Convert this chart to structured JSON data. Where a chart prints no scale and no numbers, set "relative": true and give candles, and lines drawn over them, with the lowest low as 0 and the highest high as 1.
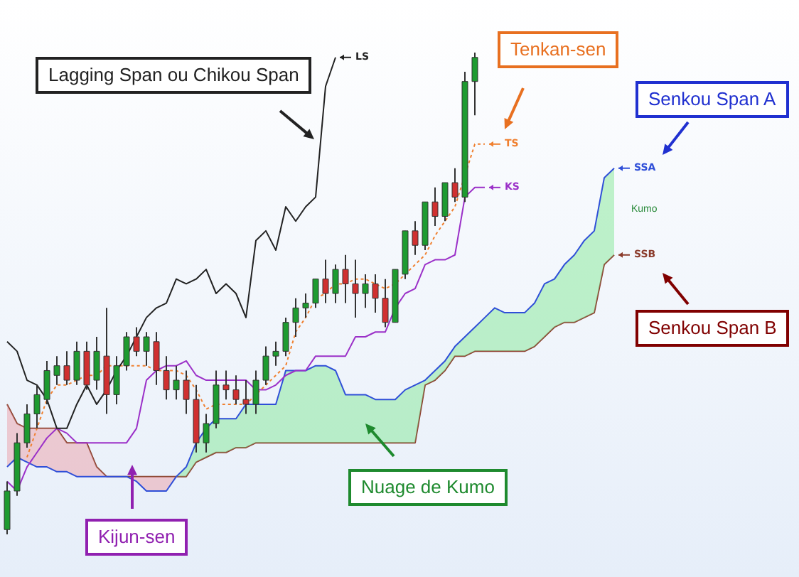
{
  "chart_data": {
    "type": "candlestick",
    "relative": true,
    "tick_labels": false,
    "legend": "right",
    "categories": [
      null,
      null,
      null,
      null,
      null,
      null,
      null,
      null,
      null,
      null,
      null,
      null,
      null,
      null,
      null,
      null,
      null,
      null,
      null,
      null,
      null,
      null,
      null,
      null,
      null,
      null,
      null,
      null,
      null,
      null,
      null,
      null,
      null,
      null,
      null,
      null,
      null,
      null,
      null,
      null,
      null,
      null,
      null,
      null,
      null,
      null,
      null,
      null,
      null,
      null,
      null,
      null,
      null,
      null,
      null,
      null,
      null,
      null,
      null,
      null,
      null,
      null
    ],
    "ohlc": [
      [
        0.01,
        0.11,
        0,
        0.09
      ],
      [
        0.09,
        0.21,
        0.08,
        0.19
      ],
      [
        0.19,
        0.27,
        0.18,
        0.25
      ],
      [
        0.25,
        0.31,
        0.22,
        0.29
      ],
      [
        0.28,
        0.36,
        0.27,
        0.34
      ],
      [
        0.33,
        0.37,
        0.31,
        0.35
      ],
      [
        0.35,
        0.38,
        0.31,
        0.32
      ],
      [
        0.32,
        0.4,
        0.31,
        0.38
      ],
      [
        0.38,
        0.4,
        0.3,
        0.31
      ],
      [
        0.32,
        0.41,
        0.3,
        0.38
      ],
      [
        0.37,
        0.47,
        0.25,
        0.29
      ],
      [
        0.29,
        0.37,
        0.27,
        0.35
      ],
      [
        0.35,
        0.42,
        0.34,
        0.41
      ],
      [
        0.41,
        0.43,
        0.37,
        0.38
      ],
      [
        0.38,
        0.42,
        0.35,
        0.41
      ],
      [
        0.4,
        0.42,
        0.31,
        0.34
      ],
      [
        0.34,
        0.37,
        0.28,
        0.3
      ],
      [
        0.3,
        0.35,
        0.28,
        0.32
      ],
      [
        0.32,
        0.34,
        0.25,
        0.28
      ],
      [
        0.28,
        0.31,
        0.17,
        0.19
      ],
      [
        0.19,
        0.25,
        0.17,
        0.23
      ],
      [
        0.23,
        0.34,
        0.22,
        0.31
      ],
      [
        0.31,
        0.34,
        0.28,
        0.3
      ],
      [
        0.3,
        0.33,
        0.27,
        0.28
      ],
      [
        0.28,
        0.32,
        0.25,
        0.27
      ],
      [
        0.27,
        0.34,
        0.25,
        0.32
      ],
      [
        0.32,
        0.39,
        0.31,
        0.37
      ],
      [
        0.37,
        0.4,
        0.35,
        0.38
      ],
      [
        0.38,
        0.45,
        0.37,
        0.44
      ],
      [
        0.44,
        0.49,
        0.41,
        0.47
      ],
      [
        0.47,
        0.5,
        0.45,
        0.48
      ],
      [
        0.48,
        0.53,
        0.47,
        0.53
      ],
      [
        0.53,
        0.57,
        0.48,
        0.5
      ],
      [
        0.5,
        0.56,
        0.48,
        0.55
      ],
      [
        0.55,
        0.58,
        0.48,
        0.52
      ],
      [
        0.52,
        0.57,
        0.45,
        0.5
      ],
      [
        0.5,
        0.54,
        0.47,
        0.52
      ],
      [
        0.52,
        0.54,
        0.46,
        0.49
      ],
      [
        0.49,
        0.53,
        0.43,
        0.44
      ],
      [
        0.44,
        0.55,
        0.44,
        0.55
      ],
      [
        0.54,
        0.63,
        0.53,
        0.63
      ],
      [
        0.63,
        0.65,
        0.58,
        0.6
      ],
      [
        0.6,
        0.69,
        0.59,
        0.69
      ],
      [
        0.69,
        0.72,
        0.64,
        0.66
      ],
      [
        0.66,
        0.73,
        0.65,
        0.73
      ],
      [
        0.73,
        0.76,
        0.69,
        0.7
      ],
      [
        0.7,
        0.96,
        0.69,
        0.94
      ],
      [
        0.94,
        1,
        0.87,
        0.99
      ],
      null,
      null,
      null,
      null,
      null,
      null,
      null,
      null,
      null,
      null,
      null,
      null,
      null,
      null
    ],
    "colors": [
      "#1e9b30",
      "#1e9b30",
      "#1e9b30",
      "#1e9b30",
      "#1e9b30",
      "#1e9b30",
      "#d03030",
      "#1e9b30",
      "#d03030",
      "#1e9b30",
      "#d03030",
      "#1e9b30",
      "#1e9b30",
      "#d03030",
      "#1e9b30",
      "#d03030",
      "#d03030",
      "#1e9b30",
      "#d03030",
      "#d03030",
      "#1e9b30",
      "#1e9b30",
      "#d03030",
      "#d03030",
      "#d03030",
      "#1e9b30",
      "#1e9b30",
      "#1e9b30",
      "#1e9b30",
      "#1e9b30",
      "#1e9b30",
      "#1e9b30",
      "#d03030",
      "#1e9b30",
      "#d03030",
      "#d03030",
      "#1e9b30",
      "#d03030",
      "#d03030",
      "#1e9b30",
      "#1e9b30",
      "#d03030",
      "#1e9b30",
      "#d03030",
      "#1e9b30",
      "#d03030",
      "#1e9b30",
      "#1e9b30",
      null,
      null,
      null,
      null,
      null,
      null,
      null,
      null,
      null,
      null,
      null,
      null,
      null,
      null
    ],
    "series": [
      {
        "name": "LS",
        "type": "line",
        "color": "#222222",
        "values": [
          0.4,
          0.38,
          0.32,
          0.31,
          0.28,
          0.22,
          0.22,
          0.27,
          0.31,
          0.27,
          0.3,
          0.34,
          0.37,
          0.41,
          0.45,
          0.47,
          0.48,
          0.53,
          0.52,
          0.53,
          0.55,
          0.5,
          0.52,
          0.5,
          0.45,
          0.61,
          0.63,
          0.59,
          0.68,
          0.65,
          0.68,
          0.7,
          0.93,
          0.99,
          null,
          null,
          null,
          null,
          null,
          null,
          null,
          null,
          null,
          null,
          null,
          null,
          null,
          null,
          null,
          null,
          null,
          null,
          null,
          null,
          null,
          null,
          null,
          null,
          null,
          null,
          null,
          null
        ]
      },
      {
        "name": "TS",
        "type": "line",
        "color": "#f08030",
        "line_style": "dotted",
        "values": [
          null,
          null,
          0.16,
          0.22,
          0.28,
          0.31,
          0.31,
          0.32,
          0.33,
          0.33,
          0.35,
          0.35,
          0.35,
          0.35,
          0.35,
          0.34,
          0.34,
          0.34,
          0.33,
          0.3,
          0.26,
          0.27,
          0.27,
          0.27,
          0.27,
          0.29,
          0.31,
          0.33,
          0.35,
          0.42,
          0.45,
          0.49,
          0.5,
          0.52,
          0.52,
          0.53,
          0.53,
          0.52,
          0.51,
          0.52,
          0.54,
          0.56,
          0.58,
          0.62,
          0.65,
          0.68,
          null,
          0.81,
          0.81,
          null,
          null,
          null,
          null,
          null,
          null,
          null,
          null,
          null,
          null,
          null,
          null,
          null
        ]
      },
      {
        "name": "KS",
        "type": "line",
        "color": "#9b30c8",
        "values": [
          0.11,
          0.09,
          0.14,
          0.17,
          0.2,
          0.22,
          0.21,
          0.19,
          0.19,
          0.19,
          0.19,
          0.19,
          0.19,
          0.22,
          0.32,
          0.34,
          0.35,
          0.35,
          0.36,
          0.33,
          0.32,
          0.32,
          0.32,
          0.32,
          0.32,
          0.3,
          0.3,
          0.31,
          0.33,
          0.34,
          0.34,
          0.37,
          0.37,
          0.37,
          0.37,
          0.41,
          0.41,
          0.42,
          0.42,
          0.47,
          0.5,
          0.51,
          0.56,
          0.57,
          0.57,
          0.58,
          0.7,
          0.72,
          0.72,
          null,
          null,
          null,
          null,
          null,
          null,
          null,
          null,
          null,
          null,
          null,
          null,
          null
        ]
      },
      {
        "name": "SSA",
        "type": "line",
        "color": "#2f4fd8",
        "values": [
          0.14,
          0.16,
          0.15,
          0.14,
          0.14,
          0.13,
          0.13,
          0.12,
          0.12,
          0.12,
          0.12,
          0.12,
          0.12,
          0.11,
          0.09,
          0.09,
          0.09,
          0.12,
          0.14,
          0.19,
          0.22,
          0.24,
          0.24,
          0.24,
          0.27,
          0.27,
          0.27,
          0.27,
          0.34,
          0.34,
          0.34,
          0.35,
          0.35,
          0.34,
          0.29,
          0.29,
          0.29,
          0.28,
          0.28,
          0.28,
          0.3,
          0.31,
          0.32,
          0.34,
          0.36,
          0.39,
          0.41,
          0.43,
          0.45,
          0.47,
          0.46,
          0.46,
          0.46,
          0.48,
          0.52,
          0.53,
          0.56,
          0.58,
          0.61,
          0.63,
          0.74,
          0.76
        ]
      },
      {
        "name": "SSB",
        "type": "line",
        "color": "#8a3a2a",
        "values": [
          0.27,
          0.23,
          0.22,
          0.22,
          0.22,
          0.22,
          0.19,
          0.19,
          0.19,
          0.14,
          0.12,
          0.12,
          0.12,
          0.12,
          0.12,
          0.12,
          0.12,
          0.12,
          0.12,
          0.15,
          0.16,
          0.17,
          0.17,
          0.18,
          0.18,
          0.19,
          0.19,
          0.19,
          0.19,
          0.19,
          0.19,
          0.19,
          0.19,
          0.19,
          0.19,
          0.19,
          0.19,
          0.19,
          0.19,
          0.19,
          0.19,
          0.19,
          0.31,
          0.32,
          0.34,
          0.37,
          0.37,
          0.38,
          0.38,
          0.38,
          0.38,
          0.38,
          0.38,
          0.39,
          0.41,
          0.43,
          0.44,
          0.44,
          0.45,
          0.46,
          0.56,
          0.58
        ]
      }
    ],
    "annotations": [
      "Lagging Span ou Chikou Span",
      "Tenkan-sen",
      "Senkou Span A",
      "Senkou Span B",
      "Nuage de Kumo",
      "Kijun-sen",
      "Kumo"
    ]
  }
}
